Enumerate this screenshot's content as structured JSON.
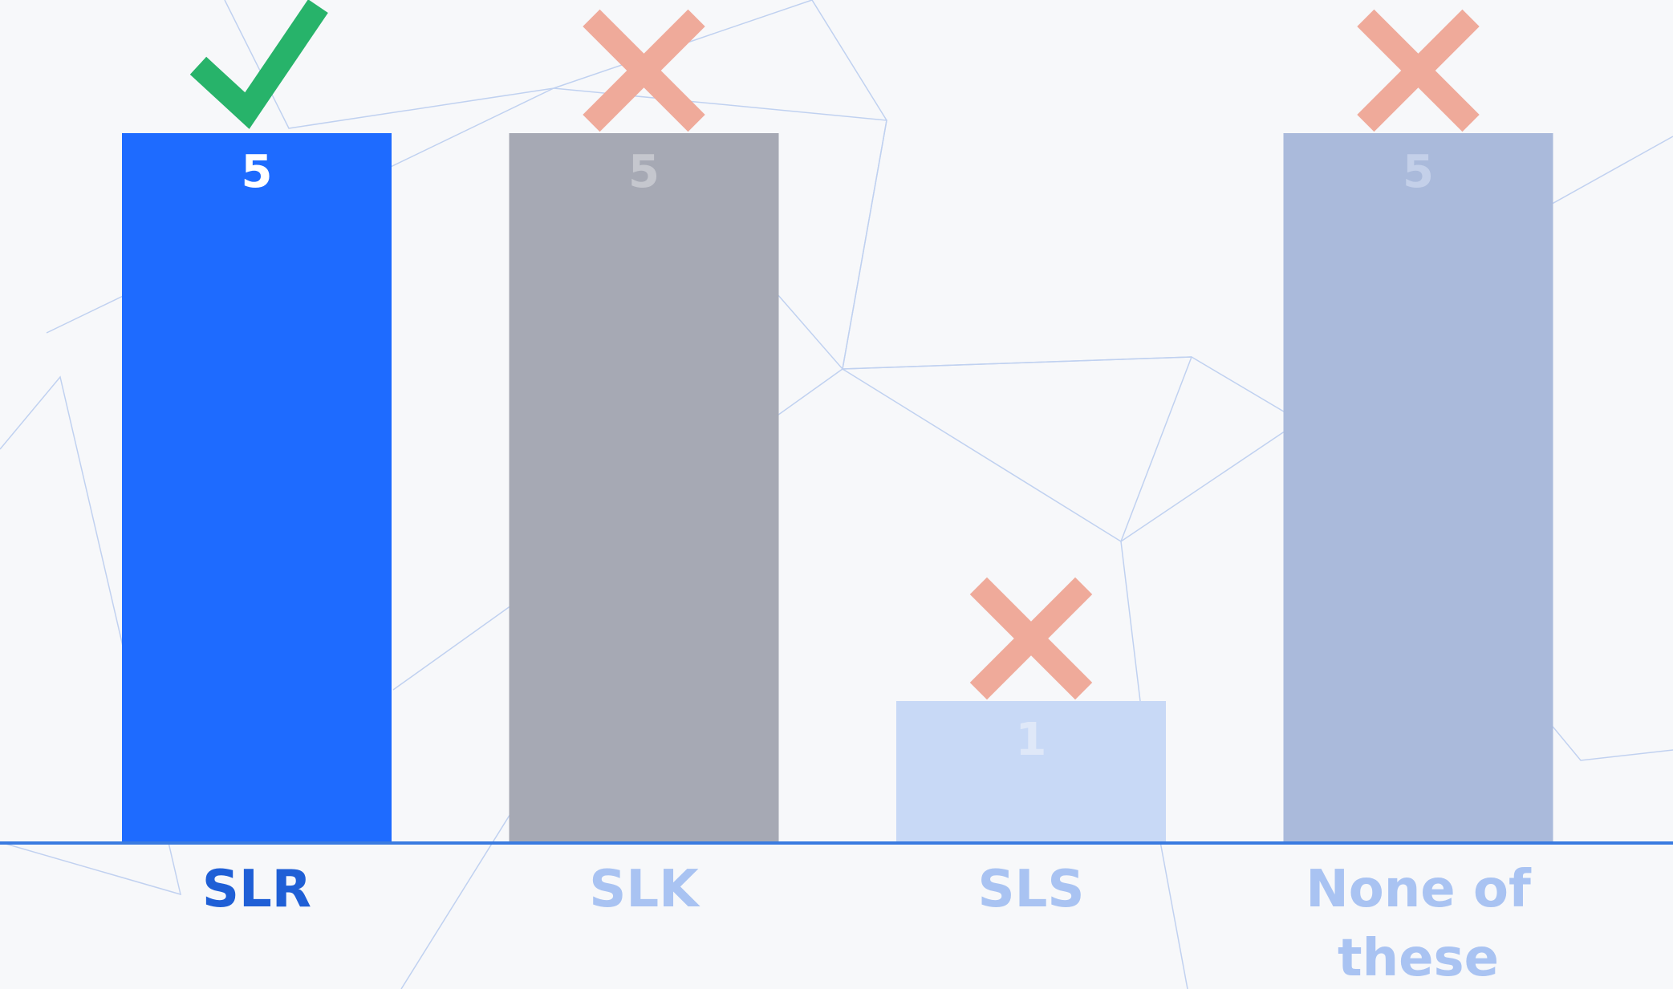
{
  "chart_data": {
    "type": "bar",
    "categories": [
      "SLR",
      "SLK",
      "SLS",
      "None of these"
    ],
    "values": [
      5,
      5,
      1,
      5
    ],
    "colors": [
      "#1e6bff",
      "#a6a9b4",
      "#c8d9f6",
      "#aabadb"
    ],
    "value_label_colors": [
      "#ffffff",
      "#c5c7ce",
      "#dfe8f8",
      "#c4d0e9"
    ],
    "category_label_colors": [
      "#1f5fd6",
      "#a9c3f2",
      "#a9c3f2",
      "#a9c3f2"
    ],
    "correct": [
      true,
      false,
      false,
      false
    ],
    "baseline_color": "#3a7be0"
  }
}
